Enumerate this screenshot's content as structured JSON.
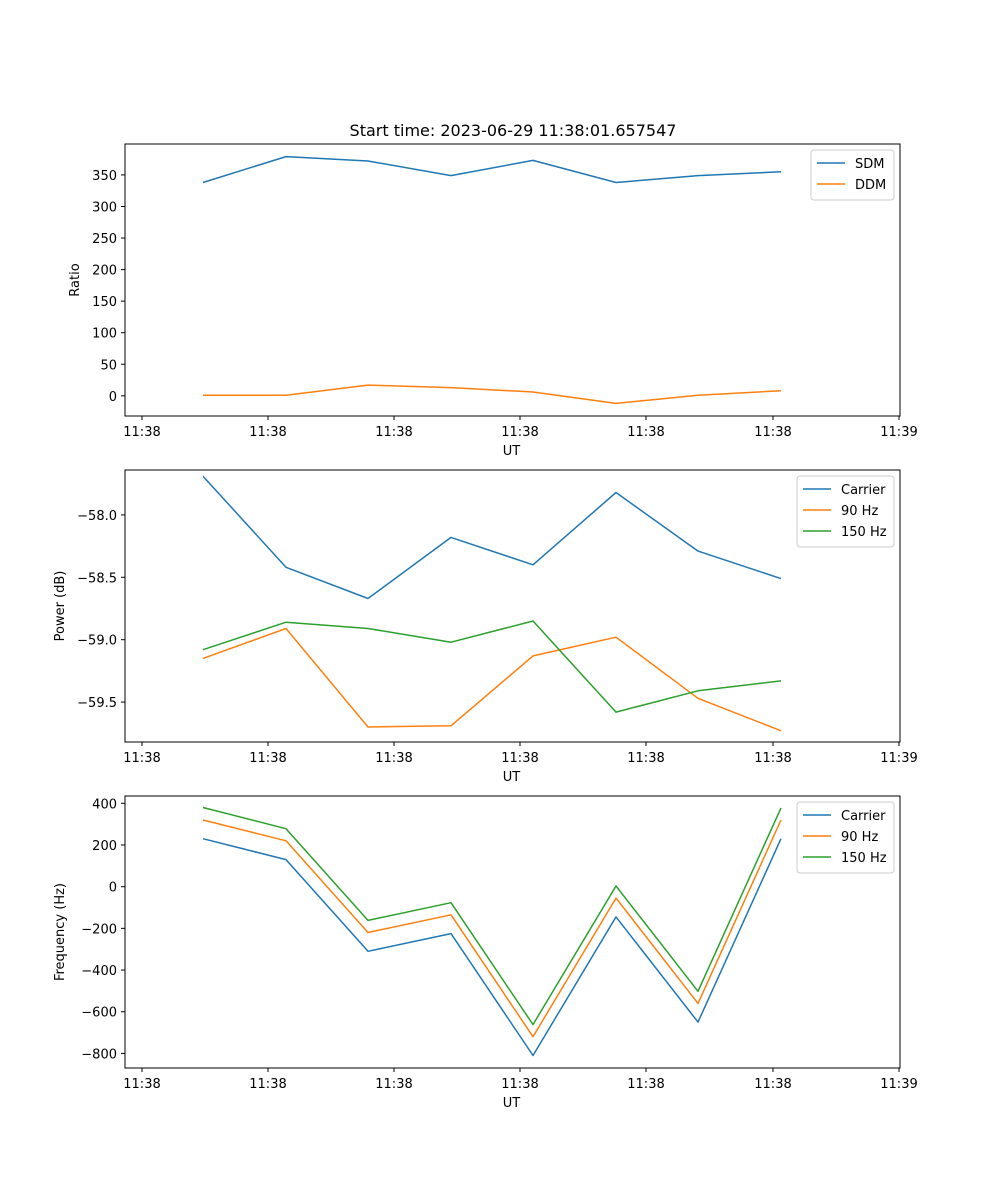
{
  "title": "Start time: 2023-06-29 11:38:01.657547",
  "colors": {
    "blue": "#1f77b4",
    "orange": "#ff7f0e",
    "green": "#2ca02c"
  },
  "chart_data": [
    {
      "type": "line",
      "xlabel": "UT",
      "ylabel": "Ratio",
      "x_tick_labels": [
        "11:38",
        "11:38",
        "11:38",
        "11:38",
        "11:38",
        "11:38",
        "11:38"
      ],
      "x_end_tick_label": "11:39",
      "y_ticks": [
        0,
        50,
        100,
        150,
        200,
        250,
        300,
        350
      ],
      "ylim": [
        -32,
        399
      ],
      "legend_position": "upper right",
      "series": [
        {
          "name": "SDM",
          "color": "blue",
          "values": [
            338,
            379,
            372,
            349,
            373,
            338,
            349,
            355
          ]
        },
        {
          "name": "DDM",
          "color": "orange",
          "values": [
            1,
            1,
            17,
            13,
            6,
            -12,
            1,
            8
          ]
        }
      ]
    },
    {
      "type": "line",
      "xlabel": "UT",
      "ylabel": "Power (dB)",
      "x_tick_labels": [
        "11:38",
        "11:38",
        "11:38",
        "11:38",
        "11:38",
        "11:38",
        "11:38"
      ],
      "x_end_tick_label": "11:39",
      "y_ticks": [
        -59.5,
        -59.0,
        -58.5,
        -58.0
      ],
      "y_tick_labels": [
        "−59.5",
        "−59.0",
        "−58.5",
        "−58.0"
      ],
      "ylim": [
        -59.82,
        -57.64
      ],
      "legend_position": "upper right",
      "series": [
        {
          "name": "Carrier",
          "color": "blue",
          "values": [
            -57.69,
            -58.42,
            -58.67,
            -58.18,
            -58.4,
            -57.82,
            -58.29,
            -58.51
          ]
        },
        {
          "name": "90 Hz",
          "color": "orange",
          "values": [
            -59.15,
            -58.91,
            -59.7,
            -59.69,
            -59.13,
            -58.98,
            -59.47,
            -59.73
          ]
        },
        {
          "name": "150 Hz",
          "color": "green",
          "values": [
            -59.08,
            -58.86,
            -58.91,
            -59.02,
            -58.85,
            -59.58,
            -59.41,
            -59.33
          ]
        }
      ]
    },
    {
      "type": "line",
      "xlabel": "UT",
      "ylabel": "Frequency (Hz)",
      "x_tick_labels": [
        "11:38",
        "11:38",
        "11:38",
        "11:38",
        "11:38",
        "11:38",
        "11:38"
      ],
      "x_end_tick_label": "11:39",
      "y_ticks": [
        -800,
        -600,
        -400,
        -200,
        0,
        200,
        400
      ],
      "y_tick_labels": [
        "−800",
        "−600",
        "−400",
        "−200",
        "0",
        "200",
        "400"
      ],
      "ylim": [
        -870,
        435
      ],
      "legend_position": "upper right",
      "series": [
        {
          "name": "Carrier",
          "color": "blue",
          "values": [
            230,
            130,
            -310,
            -225,
            -810,
            -145,
            -650,
            230
          ]
        },
        {
          "name": "90 Hz",
          "color": "orange",
          "values": [
            320,
            220,
            -220,
            -135,
            -720,
            -55,
            -560,
            320
          ]
        },
        {
          "name": "150 Hz",
          "color": "green",
          "values": [
            380,
            278,
            -162,
            -77,
            -662,
            3,
            -502,
            378
          ]
        }
      ]
    }
  ]
}
